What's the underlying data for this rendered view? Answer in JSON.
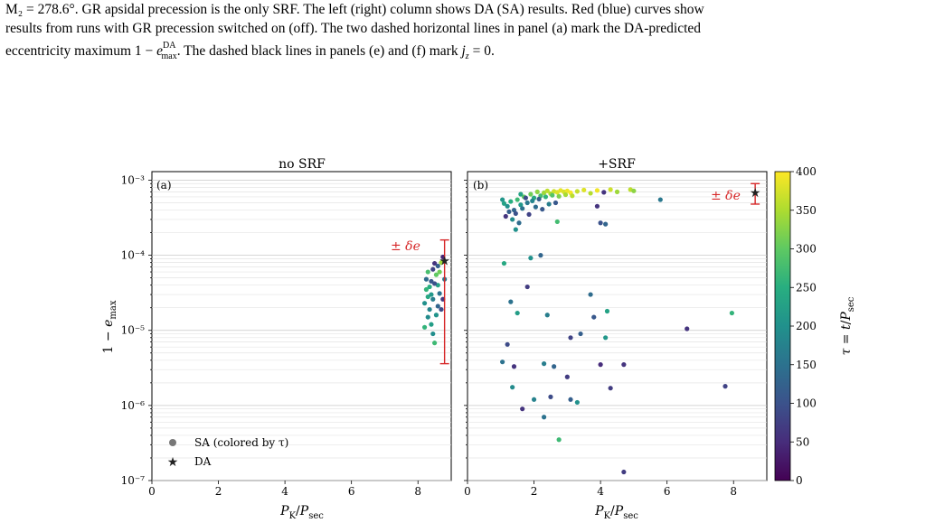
{
  "caption": {
    "lines": [
      "M₂ = 278.6°. GR apsidal precession is the only SRF. The left (right) column shows DA (SA) results. Red (blue) curves show",
      "results from runs with GR precession switched on (off). The two dashed horizontal lines in panel (a) mark the DA-predicted",
      "eccentricity maximum 1 − e^DA_max. The dashed black lines in panels (e) and (f) mark j_z = 0."
    ]
  },
  "colors": {
    "errorbar": "#d62728",
    "star": "#222222",
    "legend_marker": "#777777",
    "axis": "#000000",
    "grid": "#dddddd"
  },
  "chart_data": [
    {
      "type": "scatter",
      "panel": "(a)",
      "title": "no SRF",
      "xlabel": "P_K/P_sec",
      "ylabel": "1 − e_max",
      "xlim": [
        0,
        9
      ],
      "ylim": [
        1e-07,
        0.0013
      ],
      "yscale": "log",
      "x_ticks": [
        "0",
        "2",
        "4",
        "6",
        "8"
      ],
      "y_ticks": [
        "10⁻⁷",
        "10⁻⁶",
        "10⁻⁵",
        "10⁻⁴",
        "10⁻³"
      ],
      "grid": true,
      "legend": {
        "placement": "lower-left",
        "entries": [
          {
            "label": "SA (colored by τ)",
            "marker": "circle"
          },
          {
            "label": "DA",
            "marker": "star"
          }
        ]
      },
      "annotation": "± δe",
      "da_point": {
        "x": 8.8,
        "y": 8.5e-05
      },
      "errorbar": {
        "x": 8.8,
        "ylow": 3.6e-06,
        "yhigh": 0.00016
      },
      "points": [
        {
          "x": 8.25,
          "y": 3.5e-05,
          "t": 260
        },
        {
          "x": 8.3,
          "y": 2.8e-05,
          "t": 240
        },
        {
          "x": 8.35,
          "y": 1.9e-05,
          "t": 180
        },
        {
          "x": 8.2,
          "y": 2.3e-05,
          "t": 200
        },
        {
          "x": 8.4,
          "y": 4.5e-05,
          "t": 110
        },
        {
          "x": 8.45,
          "y": 6.5e-05,
          "t": 80
        },
        {
          "x": 8.5,
          "y": 7.8e-05,
          "t": 60
        },
        {
          "x": 8.55,
          "y": 5.5e-05,
          "t": 300
        },
        {
          "x": 8.6,
          "y": 4e-05,
          "t": 230
        },
        {
          "x": 8.65,
          "y": 3.1e-05,
          "t": 150
        },
        {
          "x": 8.7,
          "y": 8e-05,
          "t": 340
        },
        {
          "x": 8.75,
          "y": 9.5e-05,
          "t": 40
        },
        {
          "x": 8.3,
          "y": 1.5e-05,
          "t": 190
        },
        {
          "x": 8.4,
          "y": 1.2e-05,
          "t": 220
        },
        {
          "x": 8.5,
          "y": 6.8e-06,
          "t": 270
        },
        {
          "x": 8.6,
          "y": 2.1e-05,
          "t": 130
        },
        {
          "x": 8.7,
          "y": 1.9e-05,
          "t": 90
        },
        {
          "x": 8.35,
          "y": 3.8e-05,
          "t": 250
        },
        {
          "x": 8.45,
          "y": 2.6e-05,
          "t": 170
        },
        {
          "x": 8.55,
          "y": 1.6e-05,
          "t": 205
        },
        {
          "x": 8.25,
          "y": 4.8e-05,
          "t": 140
        },
        {
          "x": 8.65,
          "y": 6e-05,
          "t": 310
        },
        {
          "x": 8.4,
          "y": 3e-05,
          "t": 210
        },
        {
          "x": 8.5,
          "y": 4.2e-05,
          "t": 100
        },
        {
          "x": 8.8,
          "y": 4.8e-05,
          "t": 160
        },
        {
          "x": 8.3,
          "y": 6e-05,
          "t": 280
        },
        {
          "x": 8.6,
          "y": 7.2e-05,
          "t": 120
        },
        {
          "x": 8.2,
          "y": 1.1e-05,
          "t": 260
        },
        {
          "x": 8.45,
          "y": 9e-06,
          "t": 195
        },
        {
          "x": 8.75,
          "y": 2.6e-05,
          "t": 70
        }
      ]
    },
    {
      "type": "scatter",
      "panel": "(b)",
      "title": "+SRF",
      "xlabel": "P_K/P_sec",
      "ylabel": "",
      "xlim": [
        0,
        9
      ],
      "ylim": [
        1e-07,
        0.0013
      ],
      "yscale": "log",
      "x_ticks": [
        "0",
        "2",
        "4",
        "6",
        "8"
      ],
      "grid": true,
      "annotation": "± δe",
      "da_point": {
        "x": 8.65,
        "y": 0.00069
      },
      "errorbar": {
        "x": 8.65,
        "ylow": 0.00048,
        "yhigh": 0.0009
      },
      "points": [
        {
          "x": 1.1,
          "y": 0.00049,
          "t": 230
        },
        {
          "x": 1.2,
          "y": 0.00045,
          "t": 200
        },
        {
          "x": 1.3,
          "y": 0.00052,
          "t": 250
        },
        {
          "x": 1.4,
          "y": 0.0004,
          "t": 130
        },
        {
          "x": 1.5,
          "y": 0.00055,
          "t": 270
        },
        {
          "x": 1.6,
          "y": 0.00047,
          "t": 210
        },
        {
          "x": 1.7,
          "y": 0.0006,
          "t": 300
        },
        {
          "x": 1.8,
          "y": 0.0005,
          "t": 160
        },
        {
          "x": 1.9,
          "y": 0.00065,
          "t": 310
        },
        {
          "x": 2.0,
          "y": 0.00058,
          "t": 240
        },
        {
          "x": 2.1,
          "y": 0.0007,
          "t": 330
        },
        {
          "x": 2.2,
          "y": 0.00062,
          "t": 280
        },
        {
          "x": 2.3,
          "y": 0.00068,
          "t": 340
        },
        {
          "x": 2.4,
          "y": 0.00072,
          "t": 360
        },
        {
          "x": 2.5,
          "y": 0.00066,
          "t": 350
        },
        {
          "x": 2.6,
          "y": 0.00071,
          "t": 370
        },
        {
          "x": 2.7,
          "y": 0.00069,
          "t": 380
        },
        {
          "x": 2.8,
          "y": 0.00073,
          "t": 385
        },
        {
          "x": 2.9,
          "y": 0.0007,
          "t": 375
        },
        {
          "x": 3.0,
          "y": 0.00072,
          "t": 390
        },
        {
          "x": 3.1,
          "y": 0.00068,
          "t": 395
        },
        {
          "x": 3.3,
          "y": 0.00071,
          "t": 365
        },
        {
          "x": 3.5,
          "y": 0.00074,
          "t": 380
        },
        {
          "x": 3.7,
          "y": 0.00067,
          "t": 355
        },
        {
          "x": 3.9,
          "y": 0.00073,
          "t": 392
        },
        {
          "x": 4.1,
          "y": 0.00069,
          "t": 60
        },
        {
          "x": 4.3,
          "y": 0.00075,
          "t": 370
        },
        {
          "x": 4.5,
          "y": 0.0007,
          "t": 340
        },
        {
          "x": 4.9,
          "y": 0.00075,
          "t": 360
        },
        {
          "x": 5.0,
          "y": 0.00072,
          "t": 330
        },
        {
          "x": 1.25,
          "y": 0.00038,
          "t": 120
        },
        {
          "x": 1.45,
          "y": 0.00036,
          "t": 100
        },
        {
          "x": 1.65,
          "y": 0.00042,
          "t": 150
        },
        {
          "x": 1.85,
          "y": 0.00035,
          "t": 80
        },
        {
          "x": 2.05,
          "y": 0.00044,
          "t": 140
        },
        {
          "x": 2.25,
          "y": 0.00041,
          "t": 110
        },
        {
          "x": 2.45,
          "y": 0.00048,
          "t": 170
        },
        {
          "x": 1.35,
          "y": 0.0003,
          "t": 190
        },
        {
          "x": 1.55,
          "y": 0.00027,
          "t": 140
        },
        {
          "x": 1.15,
          "y": 0.00033,
          "t": 60
        },
        {
          "x": 1.45,
          "y": 0.00022,
          "t": 200
        },
        {
          "x": 1.05,
          "y": 0.00055,
          "t": 210
        },
        {
          "x": 1.75,
          "y": 0.00058,
          "t": 90
        },
        {
          "x": 1.95,
          "y": 0.00053,
          "t": 180
        },
        {
          "x": 2.15,
          "y": 0.00056,
          "t": 120
        },
        {
          "x": 2.35,
          "y": 0.0006,
          "t": 260
        },
        {
          "x": 2.55,
          "y": 0.00063,
          "t": 290
        },
        {
          "x": 2.75,
          "y": 0.00061,
          "t": 320
        },
        {
          "x": 2.95,
          "y": 0.00064,
          "t": 345
        },
        {
          "x": 3.15,
          "y": 0.00062,
          "t": 358
        },
        {
          "x": 1.6,
          "y": 0.00065,
          "t": 230
        },
        {
          "x": 2.65,
          "y": 0.0005,
          "t": 110
        },
        {
          "x": 2.7,
          "y": 0.00028,
          "t": 275
        },
        {
          "x": 3.9,
          "y": 0.00045,
          "t": 60
        },
        {
          "x": 4.0,
          "y": 0.00027,
          "t": 100
        },
        {
          "x": 4.15,
          "y": 0.00026,
          "t": 130
        },
        {
          "x": 5.8,
          "y": 0.00055,
          "t": 160
        },
        {
          "x": 1.1,
          "y": 7.8e-05,
          "t": 240
        },
        {
          "x": 1.9,
          "y": 9.2e-05,
          "t": 200
        },
        {
          "x": 2.2,
          "y": 0.0001,
          "t": 130
        },
        {
          "x": 1.8,
          "y": 3.8e-05,
          "t": 70
        },
        {
          "x": 1.3,
          "y": 2.4e-05,
          "t": 150
        },
        {
          "x": 1.5,
          "y": 1.7e-05,
          "t": 220
        },
        {
          "x": 2.4,
          "y": 1.6e-05,
          "t": 170
        },
        {
          "x": 3.7,
          "y": 3e-05,
          "t": 140
        },
        {
          "x": 3.8,
          "y": 1.5e-05,
          "t": 110
        },
        {
          "x": 4.2,
          "y": 1.8e-05,
          "t": 230
        },
        {
          "x": 1.2,
          "y": 6.5e-06,
          "t": 90
        },
        {
          "x": 3.1,
          "y": 8e-06,
          "t": 80
        },
        {
          "x": 3.4,
          "y": 9e-06,
          "t": 120
        },
        {
          "x": 4.15,
          "y": 8e-06,
          "t": 210
        },
        {
          "x": 6.6,
          "y": 1.05e-05,
          "t": 60
        },
        {
          "x": 7.95,
          "y": 1.7e-05,
          "t": 260
        },
        {
          "x": 1.05,
          "y": 3.8e-06,
          "t": 150
        },
        {
          "x": 1.4,
          "y": 3.3e-06,
          "t": 60
        },
        {
          "x": 2.3,
          "y": 3.6e-06,
          "t": 170
        },
        {
          "x": 2.6,
          "y": 3.3e-06,
          "t": 130
        },
        {
          "x": 3.0,
          "y": 2.4e-06,
          "t": 70
        },
        {
          "x": 4.0,
          "y": 3.5e-06,
          "t": 50
        },
        {
          "x": 4.7,
          "y": 3.5e-06,
          "t": 60
        },
        {
          "x": 1.35,
          "y": 1.75e-06,
          "t": 190
        },
        {
          "x": 2.0,
          "y": 1.2e-06,
          "t": 175
        },
        {
          "x": 2.5,
          "y": 1.3e-06,
          "t": 90
        },
        {
          "x": 3.1,
          "y": 1.2e-06,
          "t": 120
        },
        {
          "x": 3.3,
          "y": 1.1e-06,
          "t": 200
        },
        {
          "x": 4.3,
          "y": 1.7e-06,
          "t": 70
        },
        {
          "x": 7.75,
          "y": 1.8e-06,
          "t": 80
        },
        {
          "x": 1.65,
          "y": 9e-07,
          "t": 60
        },
        {
          "x": 2.3,
          "y": 7e-07,
          "t": 150
        },
        {
          "x": 2.75,
          "y": 3.5e-07,
          "t": 270
        },
        {
          "x": 4.7,
          "y": 1.3e-07,
          "t": 70
        }
      ]
    }
  ],
  "colorbar": {
    "label": "τ = t/P_sec",
    "range": [
      0,
      400
    ],
    "ticks": [
      "0",
      "50",
      "100",
      "150",
      "200",
      "250",
      "300",
      "350",
      "400"
    ],
    "colormap": "viridis"
  }
}
